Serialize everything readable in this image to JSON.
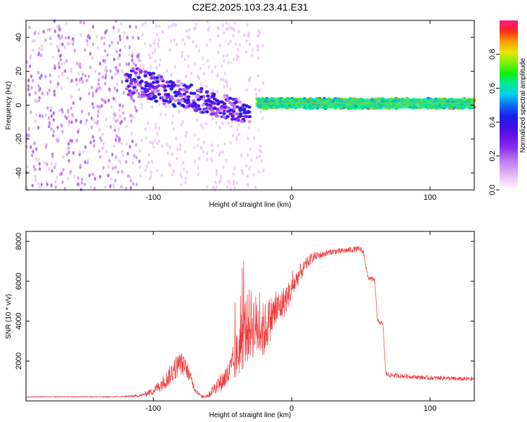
{
  "title": "C2E2.2025.103.23.41.E31",
  "colors": {
    "snr_line": "#ee3a3a",
    "frame": "#000000",
    "colormap": [
      "#ffffff",
      "#eecdfa",
      "#d49cf5",
      "#b46cf0",
      "#8a2cf0",
      "#6a12e8",
      "#3b10e0",
      "#1a22f0",
      "#0a6cf5",
      "#00d0f0",
      "#00e89a",
      "#10f010",
      "#80f000",
      "#e8e800",
      "#ff9a00",
      "#ff2a1a",
      "#ff1a8a"
    ]
  },
  "chart_data": [
    {
      "type": "heatmap",
      "xlabel": "Height of straight line (km)",
      "ylabel": "Frequency (Hz)",
      "xlim": [
        -192,
        132
      ],
      "ylim": [
        -50,
        50
      ],
      "xticks": [
        -100,
        0,
        100
      ],
      "xtick_labels": [
        "-100",
        "0",
        "100"
      ],
      "yticks": [
        -40,
        -20,
        0,
        20,
        40
      ],
      "ytick_labels": [
        "-40",
        "-20",
        "0",
        "20",
        "40"
      ],
      "colorbar": {
        "label": "Normalized spectral amplitude",
        "range": [
          0,
          1
        ],
        "ticks": [
          0.0,
          0.2,
          0.4,
          0.6,
          0.8
        ],
        "tick_labels": [
          "0.0",
          "0.2",
          "0.4",
          "0.6",
          "0.8"
        ]
      },
      "regions": [
        {
          "name": "noise-scatter",
          "x": [
            -192,
            -110
          ],
          "f": [
            -50,
            50
          ],
          "level": [
            0.05,
            0.2
          ]
        },
        {
          "name": "noise-scatter-faint",
          "x": [
            -110,
            -20
          ],
          "f": [
            -50,
            50
          ],
          "level": [
            0.02,
            0.06
          ]
        },
        {
          "name": "transition-band",
          "x": [
            -120,
            -30
          ],
          "f_center": [
            15,
            -5
          ],
          "f_halfwidth": [
            9,
            6
          ],
          "level": [
            0.12,
            0.45
          ]
        },
        {
          "name": "carrier-line",
          "x": [
            -25,
            132
          ],
          "f_center": [
            1,
            1
          ],
          "f_halfwidth": [
            3,
            3
          ],
          "level": [
            0.45,
            0.92
          ]
        }
      ]
    },
    {
      "type": "line",
      "xlabel": "Height of straight line (km)",
      "ylabel": "SNR (10 * v/v)",
      "xlim": [
        -192,
        132
      ],
      "ylim": [
        0,
        8500
      ],
      "xticks": [
        -100,
        0,
        100
      ],
      "xtick_labels": [
        "-100",
        "0",
        "100"
      ],
      "yticks": [
        2000,
        4000,
        6000,
        8000
      ],
      "ytick_labels": [
        "2000",
        "4000",
        "6000",
        "8000"
      ],
      "series": [
        {
          "name": "SNR",
          "x": [
            -192,
            -160,
            -130,
            -110,
            -100,
            -95,
            -90,
            -85,
            -80,
            -75,
            -70,
            -65,
            -60,
            -55,
            -50,
            -45,
            -40,
            -35,
            -30,
            -25,
            -20,
            -15,
            -10,
            -5,
            0,
            5,
            10,
            15,
            20,
            25,
            30,
            35,
            40,
            45,
            50,
            52,
            55,
            58,
            60,
            62,
            65,
            66,
            68,
            70,
            80,
            90,
            100,
            110,
            120,
            132
          ],
          "y": [
            200,
            210,
            200,
            250,
            500,
            800,
            1100,
            1600,
            1900,
            1500,
            600,
            200,
            300,
            700,
            1000,
            1400,
            2200,
            3300,
            3900,
            3700,
            3500,
            4200,
            4600,
            5000,
            5600,
            6300,
            6800,
            7200,
            7300,
            7400,
            7500,
            7500,
            7550,
            7600,
            7600,
            7450,
            6200,
            6100,
            6050,
            4000,
            3900,
            3800,
            1400,
            1300,
            1250,
            1200,
            1150,
            1150,
            1100,
            1100
          ],
          "noise": [
            20,
            20,
            25,
            60,
            200,
            350,
            450,
            600,
            600,
            400,
            150,
            60,
            150,
            350,
            500,
            700,
            1200,
            1800,
            1800,
            1600,
            1400,
            1100,
            900,
            800,
            600,
            500,
            350,
            250,
            200,
            160,
            150,
            150,
            150,
            150,
            150,
            120,
            120,
            120,
            120,
            100,
            100,
            100,
            120,
            120,
            110,
            110,
            110,
            110,
            110,
            110
          ]
        }
      ]
    }
  ]
}
